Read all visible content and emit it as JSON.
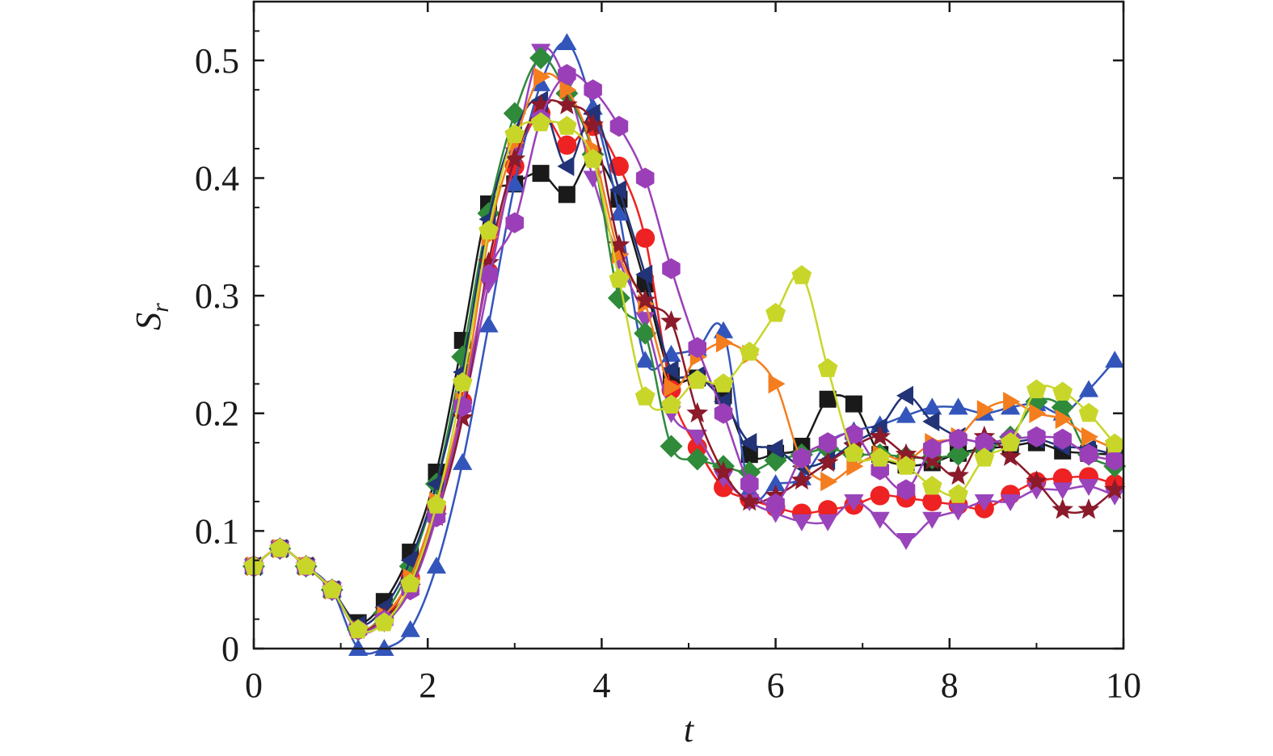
{
  "chart_data": {
    "type": "line",
    "xlabel": "t",
    "ylabel": "S",
    "ylabel_sub": "r",
    "xlim": [
      0,
      10
    ],
    "ylim": [
      0,
      0.55
    ],
    "x_ticks": [
      0,
      2,
      4,
      6,
      8,
      10
    ],
    "x_tick_labels": [
      "0",
      "2",
      "4",
      "6",
      "8",
      "10"
    ],
    "y_ticks": [
      0,
      0.1,
      0.2,
      0.3,
      0.4,
      0.5
    ],
    "y_tick_labels": [
      "0",
      "0.1",
      "0.2",
      "0.3",
      "0.4",
      "0.5"
    ],
    "grid": false,
    "legend": "none",
    "x": [
      0,
      0.3,
      0.6,
      0.9,
      1.2,
      1.5,
      1.8,
      2.1,
      2.4,
      2.7,
      3.0,
      3.3,
      3.6,
      3.9,
      4.2,
      4.5,
      4.8,
      5.1,
      5.4,
      5.7,
      6.0,
      6.3,
      6.6,
      6.9,
      7.2,
      7.5,
      7.8,
      8.1,
      8.4,
      8.7,
      9.0,
      9.3,
      9.6,
      9.9
    ],
    "series": [
      {
        "color": "#1a1a1a",
        "marker": "square",
        "values": [
          0.07,
          0.085,
          0.07,
          0.05,
          0.022,
          0.04,
          0.082,
          0.15,
          0.262,
          0.378,
          0.395,
          0.404,
          0.386,
          0.418,
          0.382,
          0.31,
          0.232,
          0.23,
          0.215,
          0.165,
          0.166,
          0.172,
          0.212,
          0.208,
          0.165,
          0.156,
          0.158,
          0.166,
          0.17,
          0.172,
          0.175,
          0.168,
          0.166,
          0.165
        ]
      },
      {
        "color": "#ee2222",
        "marker": "circle",
        "values": [
          0.07,
          0.085,
          0.07,
          0.05,
          0.016,
          0.025,
          0.06,
          0.12,
          0.21,
          0.32,
          0.41,
          0.455,
          0.428,
          0.444,
          0.41,
          0.349,
          0.22,
          0.171,
          0.137,
          0.127,
          0.12,
          0.115,
          0.118,
          0.122,
          0.13,
          0.128,
          0.125,
          0.122,
          0.119,
          0.131,
          0.142,
          0.145,
          0.146,
          0.14
        ]
      },
      {
        "color": "#3355bb",
        "marker": "triangle-up",
        "values": [
          0.07,
          0.085,
          0.07,
          0.05,
          0.0,
          0.0,
          0.016,
          0.07,
          0.158,
          0.275,
          0.395,
          0.48,
          0.515,
          0.46,
          0.37,
          0.245,
          0.25,
          0.255,
          0.27,
          0.135,
          0.14,
          0.145,
          0.175,
          0.185,
          0.19,
          0.198,
          0.205,
          0.205,
          0.2,
          0.205,
          0.208,
          0.2,
          0.22,
          0.245
        ]
      },
      {
        "color": "#9944bb",
        "marker": "triangle-down",
        "values": [
          0.07,
          0.085,
          0.07,
          0.05,
          0.015,
          0.022,
          0.05,
          0.115,
          0.2,
          0.31,
          0.42,
          0.508,
          0.48,
          0.4,
          0.33,
          0.28,
          0.2,
          0.18,
          0.145,
          0.125,
          0.115,
          0.108,
          0.108,
          0.125,
          0.11,
          0.092,
          0.11,
          0.117,
          0.125,
          0.125,
          0.135,
          0.135,
          0.138,
          0.13
        ]
      },
      {
        "color": "#2f8a3a",
        "marker": "diamond",
        "values": [
          0.07,
          0.085,
          0.07,
          0.05,
          0.016,
          0.03,
          0.07,
          0.14,
          0.248,
          0.37,
          0.455,
          0.502,
          0.472,
          0.42,
          0.298,
          0.268,
          0.172,
          0.161,
          0.155,
          0.15,
          0.16,
          0.165,
          0.17,
          0.165,
          0.165,
          0.163,
          0.162,
          0.165,
          0.17,
          0.18,
          0.21,
          0.205,
          0.165,
          0.155
        ]
      },
      {
        "color": "#223377",
        "marker": "triangle-left",
        "values": [
          0.07,
          0.085,
          0.07,
          0.05,
          0.02,
          0.035,
          0.075,
          0.14,
          0.235,
          0.365,
          0.44,
          0.466,
          0.41,
          0.455,
          0.39,
          0.318,
          0.237,
          0.232,
          0.21,
          0.175,
          0.17,
          0.155,
          0.16,
          0.175,
          0.188,
          0.215,
          0.193,
          0.18,
          0.175,
          0.175,
          0.178,
          0.172,
          0.17,
          0.165
        ]
      },
      {
        "color": "#f47e1f",
        "marker": "triangle-right",
        "values": [
          0.07,
          0.085,
          0.07,
          0.05,
          0.016,
          0.028,
          0.06,
          0.125,
          0.21,
          0.35,
          0.43,
          0.486,
          0.475,
          0.425,
          0.335,
          0.293,
          0.222,
          0.248,
          0.26,
          0.25,
          0.225,
          0.16,
          0.142,
          0.155,
          0.165,
          0.16,
          0.175,
          0.18,
          0.203,
          0.21,
          0.2,
          0.195,
          0.18,
          0.17
        ]
      },
      {
        "color": "#8b1a2a",
        "marker": "star",
        "values": [
          0.07,
          0.085,
          0.07,
          0.05,
          0.016,
          0.026,
          0.052,
          0.112,
          0.196,
          0.328,
          0.416,
          0.462,
          0.462,
          0.445,
          0.343,
          0.296,
          0.278,
          0.2,
          0.15,
          0.125,
          0.13,
          0.143,
          0.158,
          0.172,
          0.18,
          0.165,
          0.16,
          0.147,
          0.18,
          0.163,
          0.142,
          0.118,
          0.118,
          0.135
        ]
      },
      {
        "color": "#9b3fb8",
        "marker": "hexagon",
        "values": [
          0.07,
          0.085,
          0.07,
          0.05,
          0.016,
          0.024,
          0.05,
          0.112,
          0.206,
          0.318,
          0.362,
          0.45,
          0.488,
          0.475,
          0.444,
          0.4,
          0.323,
          0.256,
          0.2,
          0.14,
          0.123,
          0.162,
          0.175,
          0.182,
          0.152,
          0.135,
          0.17,
          0.178,
          0.175,
          0.178,
          0.18,
          0.178,
          0.165,
          0.16
        ]
      },
      {
        "color": "#c8d62a",
        "marker": "pentagon",
        "values": [
          0.07,
          0.085,
          0.07,
          0.05,
          0.016,
          0.022,
          0.055,
          0.122,
          0.226,
          0.355,
          0.437,
          0.447,
          0.444,
          0.416,
          0.314,
          0.214,
          0.207,
          0.228,
          0.225,
          0.252,
          0.285,
          0.317,
          0.238,
          0.166,
          0.162,
          0.155,
          0.138,
          0.131,
          0.162,
          0.175,
          0.22,
          0.218,
          0.2,
          0.174
        ]
      }
    ]
  }
}
